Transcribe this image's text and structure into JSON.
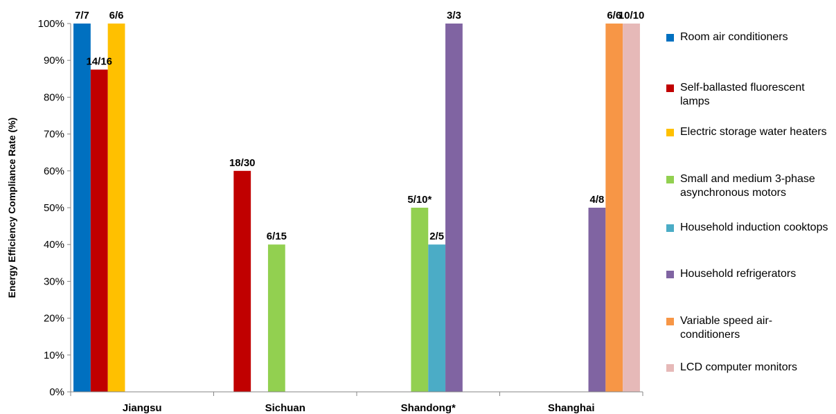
{
  "chart_data": {
    "type": "bar",
    "title": "",
    "xlabel": "",
    "ylabel": "Energy Efficiency Compliance Rate (%)",
    "ylim": [
      0,
      100
    ],
    "yticks": [
      "0%",
      "10%",
      "20%",
      "30%",
      "40%",
      "50%",
      "60%",
      "70%",
      "80%",
      "90%",
      "100%"
    ],
    "categories": [
      "Jiangsu",
      "Sichuan",
      "Shandong*",
      "Shanghai"
    ],
    "grid": false,
    "legend_position": "right",
    "series": [
      {
        "name": "Room air conditioners",
        "color": "#0070C0",
        "values": [
          100,
          null,
          null,
          null
        ],
        "labels": [
          "7/7",
          null,
          null,
          null
        ]
      },
      {
        "name": "Self-ballasted fluorescent lamps",
        "color": "#C00000",
        "values": [
          87.5,
          60,
          null,
          null
        ],
        "labels": [
          "14/16",
          "18/30",
          null,
          null
        ]
      },
      {
        "name": "Electric storage water heaters",
        "color": "#FFC000",
        "values": [
          100,
          null,
          null,
          null
        ],
        "labels": [
          "6/6",
          null,
          null,
          null
        ]
      },
      {
        "name": "Small and medium 3-phase asynchronous motors",
        "color": "#92D050",
        "values": [
          null,
          40,
          50,
          null
        ],
        "labels": [
          null,
          "6/15",
          "5/10*",
          null
        ]
      },
      {
        "name": "Household induction cooktops",
        "color": "#4BACC6",
        "values": [
          null,
          null,
          40,
          null
        ],
        "labels": [
          null,
          null,
          "2/5",
          null
        ]
      },
      {
        "name": "Household refrigerators",
        "color": "#8064A2",
        "values": [
          null,
          null,
          100,
          50
        ],
        "labels": [
          null,
          null,
          "3/3",
          "4/8"
        ]
      },
      {
        "name": "Variable speed air-conditioners",
        "color": "#F79646",
        "values": [
          null,
          null,
          null,
          100
        ],
        "labels": [
          null,
          null,
          null,
          "6/6"
        ]
      },
      {
        "name": "LCD computer monitors",
        "color": "#E6B9B8",
        "values": [
          null,
          null,
          null,
          100
        ],
        "labels": [
          null,
          null,
          null,
          "10/10"
        ]
      }
    ]
  }
}
